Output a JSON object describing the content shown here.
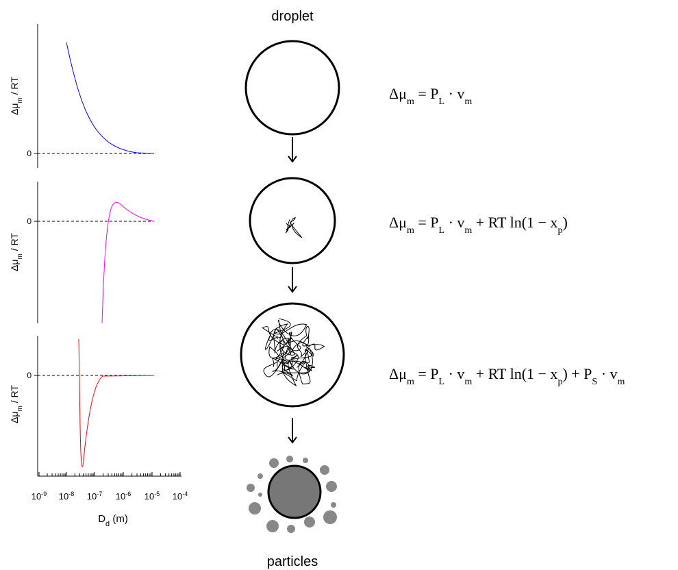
{
  "panels": [
    {
      "y_label": [
        "Δμ",
        "m",
        " / RT"
      ],
      "zero_label": "0"
    },
    {
      "y_label": [
        "Δμ",
        "m",
        " / RT"
      ],
      "zero_label": "0"
    },
    {
      "y_label": [
        "Δμ",
        "m",
        " / RT"
      ],
      "zero_label": "0"
    }
  ],
  "x_axis": {
    "ticks": [
      [
        "10",
        "-9"
      ],
      [
        "10",
        "-8"
      ],
      [
        "10",
        "-7"
      ],
      [
        "10",
        "-6"
      ],
      [
        "10",
        "-5"
      ],
      [
        "10",
        "-4"
      ]
    ],
    "label": [
      "D",
      "d",
      " (m)"
    ]
  },
  "diagram": {
    "top_label": "droplet",
    "bottom_label": "particles"
  },
  "equations": [
    [
      "Δμ",
      "m",
      " = P",
      "L",
      " · v",
      "m"
    ],
    [
      "Δμ",
      "m",
      " = P",
      "L",
      " · v",
      "m",
      " + RT ln(1 − x",
      "p",
      ")"
    ],
    [
      "Δμ",
      "m",
      " = P",
      "L",
      " · v",
      "m",
      " + RT ln(1 − x",
      "p",
      ") + P",
      "S",
      " · v",
      "m"
    ]
  ]
}
